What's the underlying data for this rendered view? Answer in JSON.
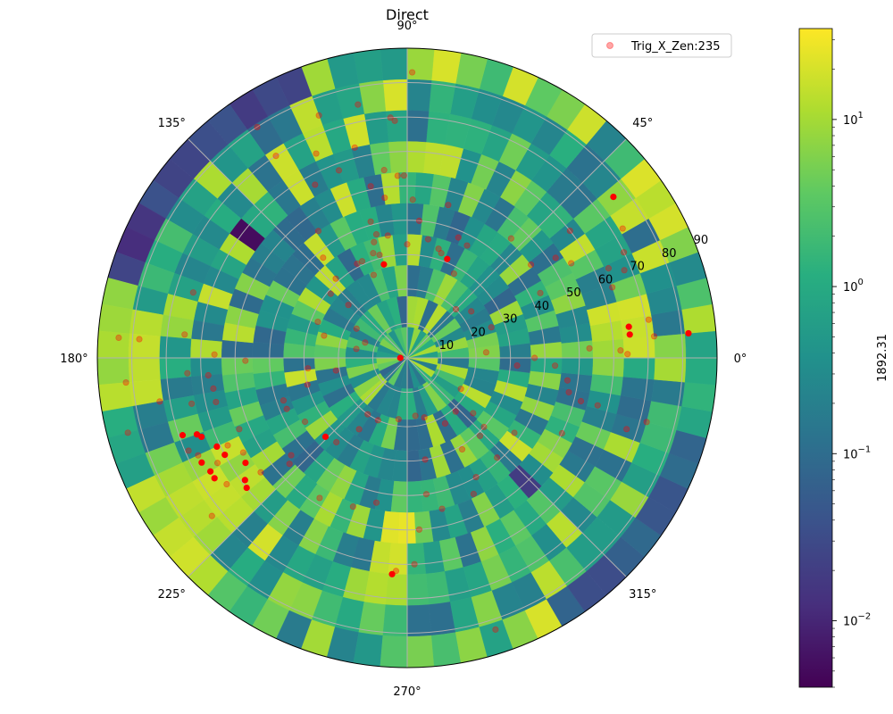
{
  "chart_data": {
    "type": "heatmap",
    "subtype": "polar",
    "title": "Direct",
    "angle_ticks": [
      "0°",
      "45°",
      "90°",
      "135°",
      "180°",
      "225°",
      "270°",
      "315°"
    ],
    "angle_tick_values": [
      0,
      45,
      90,
      135,
      180,
      225,
      270,
      315
    ],
    "radial_ticks": [
      "10",
      "20",
      "30",
      "40",
      "50",
      "60",
      "70",
      "80",
      "90"
    ],
    "radial_tick_values": [
      10,
      20,
      30,
      40,
      50,
      60,
      70,
      80,
      90
    ],
    "rlim": [
      0,
      90
    ],
    "grid": true,
    "colormap": "viridis",
    "colorbar": {
      "label": "1892.31",
      "scale": "log",
      "range": [
        0.004,
        35
      ],
      "ticks": [
        {
          "value": 0.01,
          "base": "10",
          "exp": "−2"
        },
        {
          "value": 0.1,
          "base": "10",
          "exp": "−1"
        },
        {
          "value": 1,
          "base": "10",
          "exp": "0"
        },
        {
          "value": 10,
          "base": "10",
          "exp": "1"
        }
      ]
    },
    "legend": {
      "position": "top-right",
      "entries": [
        {
          "name": "Trig_X_Zen:235",
          "marker": "circle",
          "color": "#ff0000",
          "alpha": 0.35
        }
      ]
    },
    "ring_edges": [
      0,
      9,
      18,
      27,
      36,
      45,
      54,
      63,
      72,
      81,
      90
    ],
    "sectors_per_ring": [
      28,
      36,
      44,
      52,
      60,
      66,
      72,
      72,
      72,
      72
    ],
    "highlight_regions": [
      {
        "r_min": 54,
        "r_max": 90,
        "theta_min": 205,
        "theta_max": 225,
        "value": 15
      },
      {
        "r_min": 45,
        "r_max": 72,
        "theta_min": 260,
        "theta_max": 272,
        "value": 20
      },
      {
        "r_min": 54,
        "r_max": 72,
        "theta_min": 0,
        "theta_max": 15,
        "value": 18
      },
      {
        "r_min": 72,
        "r_max": 90,
        "theta_min": 172,
        "theta_max": 188,
        "value": 12
      }
    ],
    "low_regions": [
      {
        "r_min": 81,
        "r_max": 90,
        "theta_min": 110,
        "theta_max": 165,
        "value": 0.02
      },
      {
        "r_min": 54,
        "r_max": 63,
        "theta_min": 140,
        "theta_max": 146,
        "value": 0.005
      },
      {
        "r_min": 81,
        "r_max": 90,
        "theta_min": 300,
        "theta_max": 345,
        "value": 0.05
      },
      {
        "r_min": 45,
        "r_max": 54,
        "theta_min": 310,
        "theta_max": 318,
        "value": 0.015
      }
    ],
    "points": [
      {
        "theta": 89,
        "r": 83,
        "strong": false
      },
      {
        "theta": 101,
        "r": 75,
        "strong": false
      },
      {
        "theta": 93,
        "r": 69,
        "strong": false
      },
      {
        "theta": 104,
        "r": 63,
        "strong": false
      },
      {
        "theta": 97,
        "r": 55,
        "strong": false
      },
      {
        "theta": 93,
        "r": 53,
        "strong": false
      },
      {
        "theta": 91,
        "r": 53,
        "strong": false
      },
      {
        "theta": 102,
        "r": 51,
        "strong": false
      },
      {
        "theta": 98,
        "r": 47,
        "strong": false
      },
      {
        "theta": 88,
        "r": 46,
        "strong": false
      },
      {
        "theta": 105,
        "r": 41,
        "strong": false
      },
      {
        "theta": 104,
        "r": 37,
        "strong": false
      },
      {
        "theta": 99,
        "r": 36,
        "strong": false
      },
      {
        "theta": 90,
        "r": 33,
        "strong": false
      },
      {
        "theta": 115,
        "r": 31,
        "strong": false
      },
      {
        "theta": 105,
        "r": 31,
        "strong": false
      },
      {
        "theta": 108,
        "r": 32,
        "strong": false
      },
      {
        "theta": 104,
        "r": 28,
        "strong": true
      },
      {
        "theta": 106,
        "r": 35,
        "strong": false
      },
      {
        "theta": 112,
        "r": 26,
        "strong": false
      },
      {
        "theta": 118,
        "r": 31,
        "strong": false
      },
      {
        "theta": 68,
        "r": 31,
        "strong": true
      },
      {
        "theta": 72,
        "r": 32,
        "strong": false
      },
      {
        "theta": 74,
        "r": 33,
        "strong": false
      },
      {
        "theta": 80,
        "r": 35,
        "strong": false
      },
      {
        "theta": 67,
        "r": 38,
        "strong": false
      },
      {
        "theta": 75,
        "r": 46,
        "strong": false
      },
      {
        "theta": 62,
        "r": 37,
        "strong": false
      },
      {
        "theta": 49,
        "r": 46,
        "strong": false
      },
      {
        "theta": 61,
        "r": 28,
        "strong": false
      },
      {
        "theta": 45,
        "r": 20,
        "strong": false
      },
      {
        "theta": 36,
        "r": 23,
        "strong": false
      },
      {
        "theta": 37,
        "r": 45,
        "strong": false
      },
      {
        "theta": 34,
        "r": 52,
        "strong": false
      },
      {
        "theta": 38,
        "r": 60,
        "strong": false
      },
      {
        "theta": 30,
        "r": 55,
        "strong": false
      },
      {
        "theta": 26,
        "r": 70,
        "strong": false
      },
      {
        "theta": 31,
        "r": 73,
        "strong": false
      },
      {
        "theta": 38,
        "r": 76,
        "strong": true
      },
      {
        "theta": 24,
        "r": 64,
        "strong": false
      },
      {
        "theta": 22,
        "r": 68,
        "strong": false
      },
      {
        "theta": 19,
        "r": 63,
        "strong": false
      },
      {
        "theta": 8,
        "r": 65,
        "strong": true
      },
      {
        "theta": 6,
        "r": 65,
        "strong": true
      },
      {
        "theta": 9,
        "r": 71,
        "strong": false
      },
      {
        "theta": 5,
        "r": 72,
        "strong": false
      },
      {
        "theta": 3,
        "r": 53,
        "strong": false
      },
      {
        "theta": 2,
        "r": 62,
        "strong": false
      },
      {
        "theta": 1,
        "r": 64,
        "strong": false
      },
      {
        "theta": 5,
        "r": 82,
        "strong": true
      },
      {
        "theta": 0,
        "r": 37,
        "strong": false
      },
      {
        "theta": 4,
        "r": 23,
        "strong": false
      },
      {
        "theta": 356,
        "r": 32,
        "strong": false
      },
      {
        "theta": 357,
        "r": 43,
        "strong": false
      },
      {
        "theta": 352,
        "r": 47,
        "strong": false
      },
      {
        "theta": 348,
        "r": 48,
        "strong": false
      },
      {
        "theta": 346,
        "r": 52,
        "strong": false
      },
      {
        "theta": 346,
        "r": 57,
        "strong": false
      },
      {
        "theta": 342,
        "r": 67,
        "strong": false
      },
      {
        "theta": 345,
        "r": 72,
        "strong": false
      },
      {
        "theta": 334,
        "r": 50,
        "strong": false
      },
      {
        "theta": 325,
        "r": 38,
        "strong": false
      },
      {
        "theta": 318,
        "r": 30,
        "strong": false
      },
      {
        "theta": 313,
        "r": 31,
        "strong": false
      },
      {
        "theta": 312,
        "r": 39,
        "strong": false
      },
      {
        "theta": 301,
        "r": 31,
        "strong": false
      },
      {
        "theta": 296,
        "r": 44,
        "strong": false
      },
      {
        "theta": 286,
        "r": 18,
        "strong": false
      },
      {
        "theta": 283,
        "r": 45,
        "strong": false
      },
      {
        "theta": 288,
        "r": 83,
        "strong": false
      },
      {
        "theta": 274,
        "r": 50,
        "strong": false
      },
      {
        "theta": 272,
        "r": 60,
        "strong": false
      },
      {
        "theta": 266,
        "r": 63,
        "strong": true
      },
      {
        "theta": 267,
        "r": 62,
        "strong": false
      },
      {
        "theta": 258,
        "r": 43,
        "strong": false
      },
      {
        "theta": 250,
        "r": 46,
        "strong": false
      },
      {
        "theta": 238,
        "r": 48,
        "strong": false
      },
      {
        "theta": 224,
        "r": 33,
        "strong": true
      },
      {
        "theta": 220,
        "r": 44,
        "strong": false
      },
      {
        "theta": 218,
        "r": 54,
        "strong": false
      },
      {
        "theta": 213,
        "r": 56,
        "strong": true
      },
      {
        "theta": 217,
        "r": 59,
        "strong": true
      },
      {
        "theta": 219,
        "r": 60,
        "strong": true
      },
      {
        "theta": 222,
        "r": 46,
        "strong": false
      },
      {
        "theta": 210,
        "r": 55,
        "strong": false
      },
      {
        "theta": 203,
        "r": 53,
        "strong": false
      },
      {
        "theta": 206,
        "r": 58,
        "strong": false
      },
      {
        "theta": 208,
        "r": 60,
        "strong": true
      },
      {
        "theta": 205,
        "r": 61,
        "strong": true
      },
      {
        "theta": 201,
        "r": 64,
        "strong": true
      },
      {
        "theta": 200,
        "r": 65,
        "strong": true
      },
      {
        "theta": 199,
        "r": 69,
        "strong": true
      },
      {
        "theta": 203,
        "r": 69,
        "strong": false
      },
      {
        "theta": 207,
        "r": 67,
        "strong": true
      },
      {
        "theta": 210,
        "r": 66,
        "strong": true
      },
      {
        "theta": 212,
        "r": 66,
        "strong": true
      },
      {
        "theta": 215,
        "r": 64,
        "strong": false
      },
      {
        "theta": 219,
        "r": 73,
        "strong": false
      },
      {
        "theta": 209,
        "r": 63,
        "strong": false
      },
      {
        "theta": 205,
        "r": 67,
        "strong": false
      },
      {
        "theta": 193,
        "r": 57,
        "strong": false
      },
      {
        "theta": 192,
        "r": 64,
        "strong": false
      },
      {
        "theta": 189,
        "r": 57,
        "strong": false
      },
      {
        "theta": 185,
        "r": 58,
        "strong": false
      },
      {
        "theta": 184,
        "r": 64,
        "strong": false
      },
      {
        "theta": 179,
        "r": 56,
        "strong": false
      },
      {
        "theta": 174,
        "r": 65,
        "strong": false
      },
      {
        "theta": 176,
        "r": 78,
        "strong": false
      },
      {
        "theta": 176,
        "r": 84,
        "strong": false
      },
      {
        "theta": 185,
        "r": 82,
        "strong": false
      },
      {
        "theta": 195,
        "r": 84,
        "strong": false
      },
      {
        "theta": 190,
        "r": 73,
        "strong": false
      },
      {
        "theta": 181,
        "r": 47,
        "strong": false
      },
      {
        "theta": 186,
        "r": 29,
        "strong": false
      },
      {
        "theta": 190,
        "r": 21,
        "strong": false
      },
      {
        "theta": 195,
        "r": 30,
        "strong": false
      },
      {
        "theta": 199,
        "r": 38,
        "strong": false
      },
      {
        "theta": 203,
        "r": 38,
        "strong": false
      },
      {
        "theta": 212,
        "r": 35,
        "strong": false
      },
      {
        "theta": 230,
        "r": 32,
        "strong": false
      },
      {
        "theta": 236,
        "r": 25,
        "strong": false
      },
      {
        "theta": 165,
        "r": 25,
        "strong": false
      },
      {
        "theta": 158,
        "r": 28,
        "strong": false
      },
      {
        "theta": 150,
        "r": 17,
        "strong": false
      },
      {
        "theta": 140,
        "r": 29,
        "strong": false
      },
      {
        "theta": 132,
        "r": 31,
        "strong": false
      },
      {
        "theta": 130,
        "r": 38,
        "strong": false
      },
      {
        "theta": 125,
        "r": 45,
        "strong": false
      },
      {
        "theta": 138,
        "r": 23,
        "strong": false
      },
      {
        "theta": 160,
        "r": 13,
        "strong": false
      },
      {
        "theta": 170,
        "r": 15,
        "strong": false
      },
      {
        "theta": 163,
        "r": 65,
        "strong": false
      },
      {
        "theta": 118,
        "r": 57,
        "strong": false
      },
      {
        "theta": 114,
        "r": 65,
        "strong": false
      },
      {
        "theta": 110,
        "r": 75,
        "strong": false
      },
      {
        "theta": 123,
        "r": 70,
        "strong": false
      },
      {
        "theta": 123,
        "r": 80,
        "strong": false
      },
      {
        "theta": 110,
        "r": 58,
        "strong": false
      },
      {
        "theta": 85,
        "r": 40,
        "strong": false
      },
      {
        "theta": 94,
        "r": 70,
        "strong": false
      },
      {
        "theta": 235,
        "r": 20,
        "strong": false
      },
      {
        "theta": 245,
        "r": 20,
        "strong": false
      },
      {
        "theta": 262,
        "r": 18,
        "strong": false
      },
      {
        "theta": 278,
        "r": 17,
        "strong": false
      },
      {
        "theta": 300,
        "r": 22,
        "strong": false
      },
      {
        "theta": 312,
        "r": 21,
        "strong": false
      },
      {
        "theta": 330,
        "r": 18,
        "strong": false
      },
      {
        "theta": 20,
        "r": 26,
        "strong": false
      },
      {
        "theta": 26,
        "r": 43,
        "strong": false
      },
      {
        "theta": 300,
        "r": 40,
        "strong": false
      },
      {
        "theta": 320,
        "r": 25,
        "strong": false
      },
      {
        "theta": 280,
        "r": 30,
        "strong": false
      },
      {
        "theta": 278,
        "r": 40,
        "strong": false
      },
      {
        "theta": 180,
        "r": 2,
        "strong": true
      }
    ]
  }
}
